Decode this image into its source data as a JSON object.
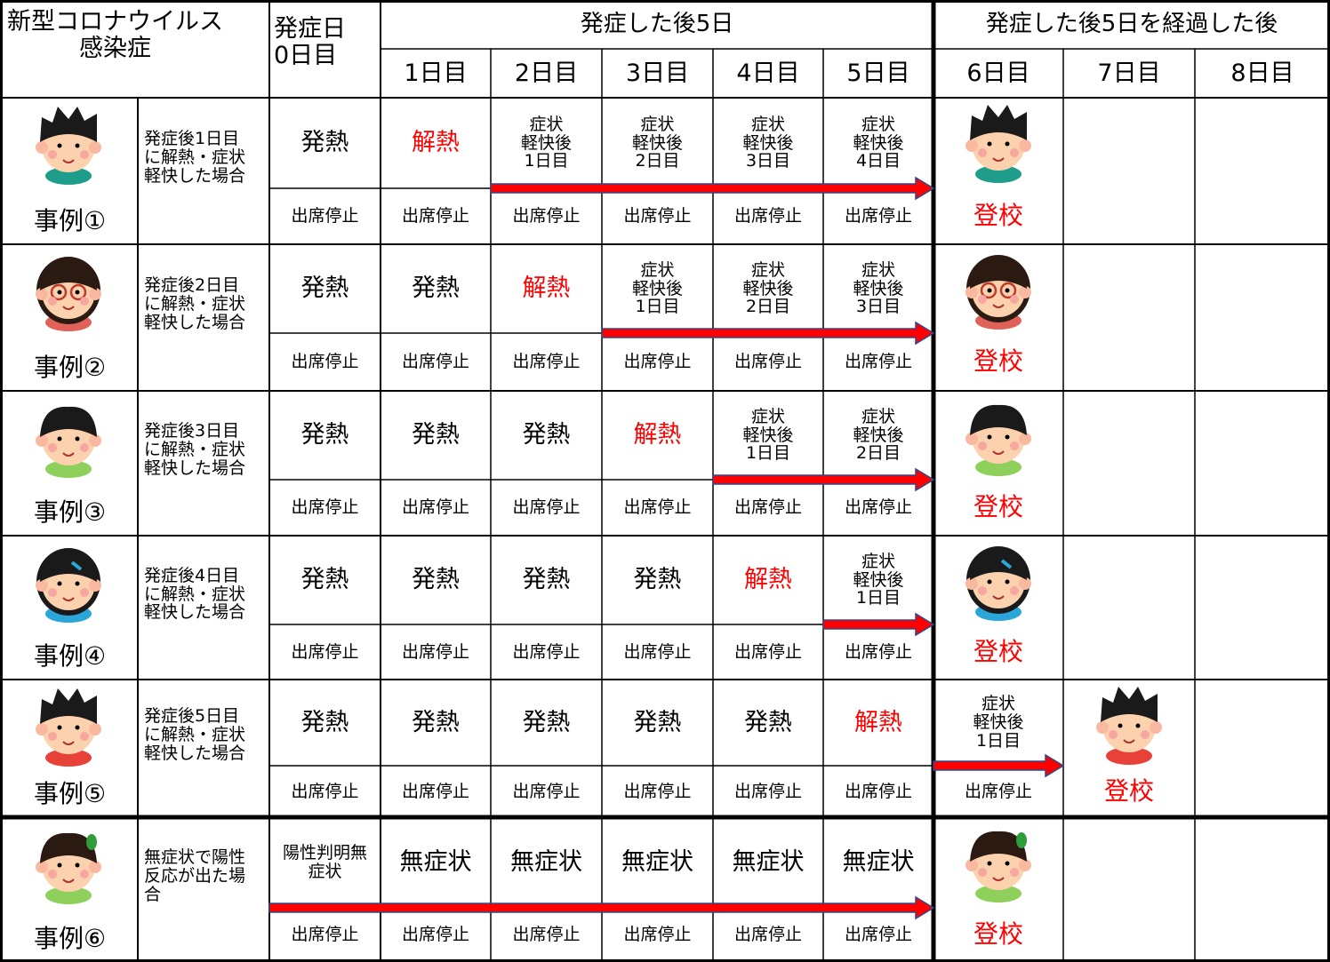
{
  "header": {
    "title": "新型コロナウイルス\n感染症",
    "day0": "発症日\n0日目",
    "group1": "発症した後5日",
    "group2": "発症した後5日を経過した後",
    "days": [
      "1日目",
      "2日目",
      "3日目",
      "4日目",
      "5日目",
      "6日目",
      "7日目",
      "8日目"
    ]
  },
  "cases": [
    {
      "label": "事例①",
      "description": "発症後1日目\nに解熱・症状\n軽快した場合",
      "status": [
        "発熱",
        {
          "text": "解熱",
          "color": "#ff0000"
        },
        "症状\n軽快後\n1日目",
        "症状\n軽快後\n2日目",
        "症状\n軽快後\n3日目",
        "症状\n軽快後\n4日目",
        null,
        null,
        null
      ],
      "attendance": [
        "出席停止",
        "出席停止",
        "出席停止",
        "出席停止",
        "出席停止",
        "出席停止",
        {
          "text": "登校",
          "color": "#ff0000"
        },
        null,
        null
      ]
    },
    {
      "label": "事例②",
      "description": "発症後2日目\nに解熱・症状\n軽快した場合",
      "status": [
        "発熱",
        "発熱",
        {
          "text": "解熱",
          "color": "#ff0000"
        },
        "症状\n軽快後\n1日目",
        "症状\n軽快後\n2日目",
        "症状\n軽快後\n3日目",
        null,
        null,
        null
      ],
      "attendance": [
        "出席停止",
        "出席停止",
        "出席停止",
        "出席停止",
        "出席停止",
        "出席停止",
        {
          "text": "登校",
          "color": "#ff0000"
        },
        null,
        null
      ]
    },
    {
      "label": "事例③",
      "description": "発症後3日目\nに解熱・症状\n軽快した場合",
      "status": [
        "発熱",
        "発熱",
        "発熱",
        {
          "text": "解熱",
          "color": "#ff0000"
        },
        "症状\n軽快後\n1日目",
        "症状\n軽快後\n2日目",
        null,
        null,
        null
      ],
      "attendance": [
        "出席停止",
        "出席停止",
        "出席停止",
        "出席停止",
        "出席停止",
        "出席停止",
        {
          "text": "登校",
          "color": "#ff0000"
        },
        null,
        null
      ]
    },
    {
      "label": "事例④",
      "description": "発症後4日目\nに解熱・症状\n軽快した場合",
      "status": [
        "発熱",
        "発熱",
        "発熱",
        "発熱",
        {
          "text": "解熱",
          "color": "#ff0000"
        },
        "症状\n軽快後\n1日目",
        null,
        null,
        null
      ],
      "attendance": [
        "出席停止",
        "出席停止",
        "出席停止",
        "出席停止",
        "出席停止",
        "出席停止",
        {
          "text": "登校",
          "color": "#ff0000"
        },
        null,
        null
      ]
    },
    {
      "label": "事例⑤",
      "description": "発症後5日目\nに解熱・症状\n軽快した場合",
      "status": [
        "発熱",
        "発熱",
        "発熱",
        "発熱",
        "発熱",
        {
          "text": "解熱",
          "color": "#ff0000"
        },
        "症状\n軽快後\n1日目",
        null,
        null
      ],
      "attendance": [
        "出席停止",
        "出席停止",
        "出席停止",
        "出席停止",
        "出席停止",
        "出席停止",
        "出席停止",
        {
          "text": "登校",
          "color": "#ff0000"
        },
        null
      ]
    },
    {
      "label": "事例⑥",
      "description": "無症状で陽性\n反応が出た場\n合",
      "status": [
        "陽性判明無\n症状",
        "無症状",
        "無症状",
        "無症状",
        "無症状",
        "無症状",
        null,
        null,
        null
      ],
      "attendance": [
        "出席停止",
        "出席停止",
        "出席停止",
        "出席停止",
        "出席停止",
        "出席停止",
        {
          "text": "登校",
          "color": "#ff0000"
        },
        null,
        null
      ]
    }
  ]
}
